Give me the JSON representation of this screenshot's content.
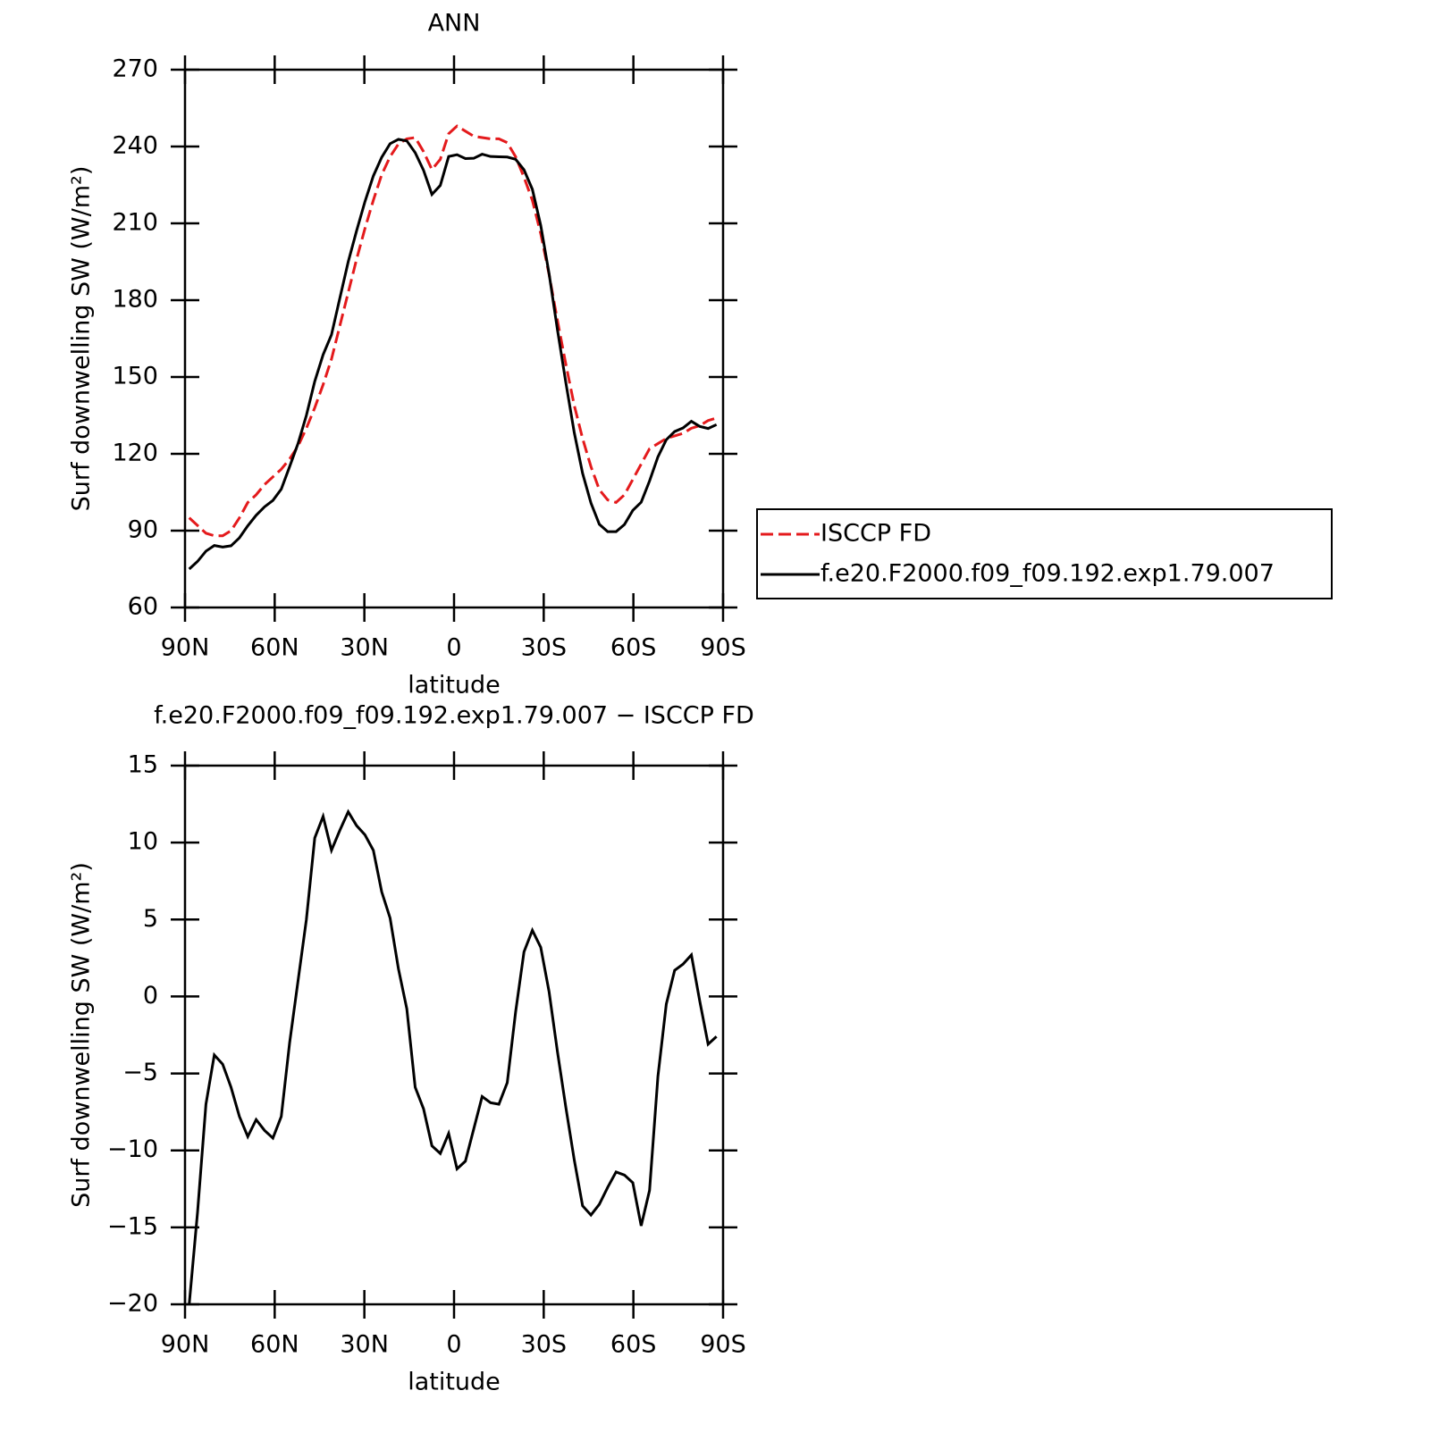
{
  "chart_data": [
    {
      "type": "line",
      "title": "ANN",
      "xlabel": "latitude",
      "ylabel": "Surf downwelling SW (W/m²)",
      "x": [
        88.6,
        85.8,
        83.0,
        80.2,
        77.4,
        74.6,
        71.8,
        69.0,
        66.2,
        63.4,
        60.6,
        57.8,
        55.0,
        52.2,
        49.4,
        46.6,
        43.8,
        41.0,
        38.2,
        35.4,
        32.6,
        29.8,
        27.0,
        24.2,
        21.4,
        18.6,
        15.8,
        13.0,
        10.2,
        7.4,
        4.6,
        1.8,
        -1.0,
        -3.8,
        -6.6,
        -9.4,
        -12.2,
        -15.0,
        -17.8,
        -20.6,
        -23.4,
        -26.2,
        -29.0,
        -31.8,
        -34.6,
        -37.4,
        -40.2,
        -43.0,
        -45.8,
        -48.6,
        -51.4,
        -54.2,
        -57.0,
        -59.8,
        -62.6,
        -65.4,
        -68.2,
        -71.0,
        -73.8,
        -76.6,
        -79.4,
        -82.2,
        -85.0,
        -87.8
      ],
      "series": [
        {
          "name": "ISCCP FD",
          "color": "#e41a1c",
          "line_style": "dashed",
          "values": [
            95,
            92,
            89,
            88,
            88,
            90,
            95,
            101,
            104,
            108,
            111,
            114,
            118,
            123,
            130,
            138,
            147,
            157,
            170,
            183,
            196,
            208,
            219,
            229,
            236,
            241,
            243,
            243.5,
            238,
            231,
            235,
            245,
            248,
            246,
            244,
            243.5,
            243,
            243,
            241.5,
            236,
            228,
            219,
            206,
            190,
            172,
            155,
            139,
            126,
            115,
            106,
            102,
            101,
            104,
            110,
            116,
            122,
            124,
            126,
            127,
            128,
            130,
            131,
            133,
            134
          ]
        },
        {
          "name": "f.e20.F2000.f09_f09.192.exp1.79.007",
          "color": "#000000",
          "line_style": "solid",
          "values": [
            75,
            78,
            82,
            84.2,
            83.6,
            84.1,
            87.2,
            91.9,
            96,
            99.3,
            101.8,
            106.2,
            115,
            124,
            135,
            148.3,
            158.7,
            166.5,
            180.8,
            195,
            207.1,
            218.5,
            228.5,
            235.8,
            241.1,
            242.8,
            242.2,
            237.6,
            230.7,
            221.3,
            224.8,
            236.1,
            236.8,
            235.3,
            235.4,
            237,
            236.1,
            236,
            235.9,
            235,
            230.9,
            223.3,
            209.2,
            190.3,
            168.4,
            147.8,
            128.4,
            112.4,
            100.8,
            92.5,
            89.6,
            89.6,
            92.4,
            97.9,
            101.1,
            109.4,
            118.8,
            125.5,
            128.7,
            130.1,
            132.7,
            130.7,
            129.9,
            131.4
          ]
        }
      ],
      "xlim": [
        90,
        -90
      ],
      "xticks": [
        {
          "value": 90,
          "label": "90N"
        },
        {
          "value": 60,
          "label": "60N"
        },
        {
          "value": 30,
          "label": "30N"
        },
        0,
        {
          "value": -30,
          "label": "30S"
        },
        {
          "value": -60,
          "label": "60S"
        },
        {
          "value": -90,
          "label": "90S"
        }
      ],
      "ylim": [
        60,
        270
      ],
      "yticks": [
        60,
        90,
        120,
        150,
        180,
        210,
        240,
        270
      ],
      "legend": "right"
    },
    {
      "type": "line",
      "title": "f.e20.F2000.f09_f09.192.exp1.79.007 − ISCCP FD",
      "xlabel": "latitude",
      "ylabel": "Surf downwelling SW (W/m²)",
      "x": [
        88.6,
        85.8,
        83.0,
        80.2,
        77.4,
        74.6,
        71.8,
        69.0,
        66.2,
        63.4,
        60.6,
        57.8,
        55.0,
        52.2,
        49.4,
        46.6,
        43.8,
        41.0,
        38.2,
        35.4,
        32.6,
        29.8,
        27.0,
        24.2,
        21.4,
        18.6,
        15.8,
        13.0,
        10.2,
        7.4,
        4.6,
        1.8,
        -1.0,
        -3.8,
        -6.6,
        -9.4,
        -12.2,
        -15.0,
        -17.8,
        -20.6,
        -23.4,
        -26.2,
        -29.0,
        -31.8,
        -34.6,
        -37.4,
        -40.2,
        -43.0,
        -45.8,
        -48.6,
        -51.4,
        -54.2,
        -57.0,
        -59.8,
        -62.6,
        -65.4,
        -68.2,
        -71.0,
        -73.8,
        -76.6,
        -79.4,
        -82.2,
        -85.0,
        -87.8
      ],
      "series": [
        {
          "color": "#000000",
          "line_style": "solid",
          "values": [
            -20,
            -14,
            -7,
            -3.8,
            -4.4,
            -5.9,
            -7.8,
            -9.1,
            -8,
            -8.7,
            -9.2,
            -7.8,
            -3,
            1,
            5,
            10.3,
            11.7,
            9.5,
            10.8,
            12,
            11.1,
            10.5,
            9.5,
            6.8,
            5.1,
            1.8,
            -0.8,
            -5.9,
            -7.3,
            -9.7,
            -10.2,
            -8.9,
            -11.2,
            -10.7,
            -8.6,
            -6.5,
            -6.9,
            -7,
            -5.6,
            -1,
            2.9,
            4.3,
            3.2,
            0.3,
            -3.6,
            -7.2,
            -10.6,
            -13.6,
            -14.2,
            -13.5,
            -12.4,
            -11.4,
            -11.6,
            -12.1,
            -14.9,
            -12.6,
            -5.2,
            -0.5,
            1.7,
            2.1,
            2.7,
            -0.3,
            -3.1,
            -2.6
          ]
        }
      ],
      "xlim": [
        90,
        -90
      ],
      "xticks": [
        {
          "value": 90,
          "label": "90N"
        },
        {
          "value": 60,
          "label": "60N"
        },
        {
          "value": 30,
          "label": "30N"
        },
        0,
        {
          "value": -30,
          "label": "30S"
        },
        {
          "value": -60,
          "label": "60S"
        },
        {
          "value": -90,
          "label": "90S"
        }
      ],
      "ylim": [
        -20,
        15
      ],
      "yticks": [
        {
          "value": -20,
          "label": "−20"
        },
        {
          "value": -15,
          "label": "−15"
        },
        {
          "value": -10,
          "label": "−10"
        },
        {
          "value": -5,
          "label": "−5"
        },
        0,
        5,
        10,
        15
      ]
    }
  ]
}
